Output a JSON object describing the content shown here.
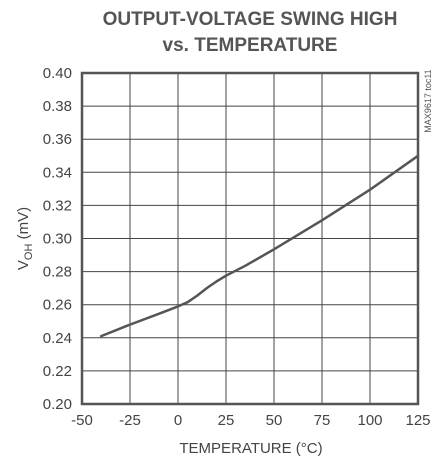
{
  "chart_data": {
    "type": "line",
    "title_line1": "OUTPUT-VOLTAGE SWING HIGH",
    "title_line2": "vs. TEMPERATURE",
    "xlabel": "TEMPERATURE (°C)",
    "ylabel_main": "V",
    "ylabel_sub": "OH",
    "ylabel_unit": " (mV)",
    "side_tag": "MAX9617 toc11",
    "xlim": [
      -50,
      125
    ],
    "ylim": [
      0.2,
      0.4
    ],
    "x_ticks": [
      -50,
      -25,
      0,
      25,
      50,
      75,
      100,
      125
    ],
    "x_tick_labels": [
      "-50",
      "-25",
      "0",
      "25",
      "50",
      "75",
      "100",
      "125"
    ],
    "y_ticks": [
      0.2,
      0.22,
      0.24,
      0.26,
      0.28,
      0.3,
      0.32,
      0.34,
      0.36,
      0.38,
      0.4
    ],
    "y_tick_labels": [
      "0.20",
      "0.22",
      "0.24",
      "0.26",
      "0.28",
      "0.30",
      "0.32",
      "0.34",
      "0.36",
      "0.38",
      "0.40"
    ],
    "grid": true,
    "series": [
      {
        "x": [
          -40,
          -25,
          -10,
          0,
          5,
          10,
          15,
          20,
          25,
          35,
          50,
          75,
          100,
          125
        ],
        "y": [
          0.241,
          0.248,
          0.2545,
          0.259,
          0.2615,
          0.2655,
          0.27,
          0.274,
          0.2775,
          0.2835,
          0.2935,
          0.311,
          0.3295,
          0.35
        ]
      }
    ]
  }
}
